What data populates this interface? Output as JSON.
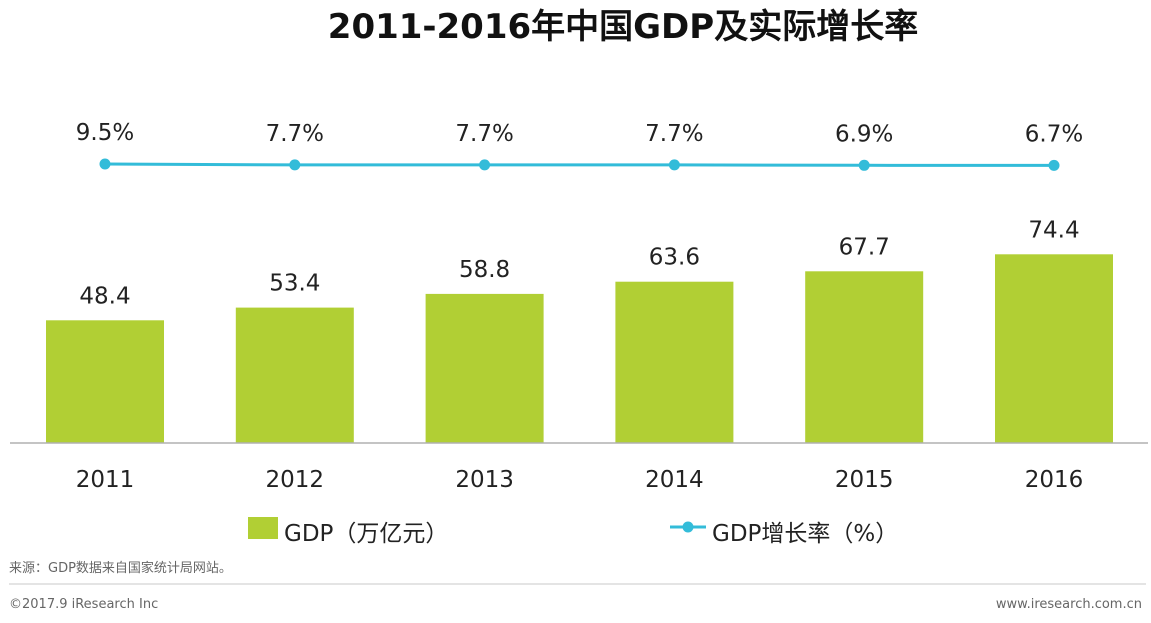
{
  "chart_data": {
    "type": "bar",
    "title": "2011-2016年中国GDP及实际增长率",
    "categories": [
      "2011",
      "2012",
      "2013",
      "2014",
      "2015",
      "2016"
    ],
    "series": [
      {
        "name": "GDP（万亿元）",
        "kind": "bar",
        "values": [
          48.4,
          53.4,
          58.8,
          63.6,
          67.7,
          74.4
        ],
        "labels": [
          "48.4",
          "53.4",
          "58.8",
          "63.6",
          "67.7",
          "74.4"
        ],
        "color": "#b1cf34"
      },
      {
        "name": "GDP增长率（%）",
        "kind": "line",
        "values": [
          9.5,
          7.7,
          7.7,
          7.7,
          6.9,
          6.7
        ],
        "labels": [
          "9.5%",
          "7.7%",
          "7.7%",
          "7.7%",
          "6.9%",
          "6.7%"
        ],
        "color": "#33bcd9"
      }
    ],
    "ylim": [
      0,
      80
    ],
    "legend_position": "bottom-center",
    "grid": false
  },
  "legend": {
    "bar_label": "GDP（万亿元）",
    "line_label": "GDP增长率（%）"
  },
  "footer": {
    "source": "来源：GDP数据来自国家统计局网站。",
    "copyright": "©2017.9 iResearch Inc",
    "website": "www.iresearch.com.cn"
  },
  "colors": {
    "bar": "#b1cf34",
    "line": "#33bcd9",
    "axis": "#b0b0b0",
    "divider": "#c8c8c8"
  }
}
